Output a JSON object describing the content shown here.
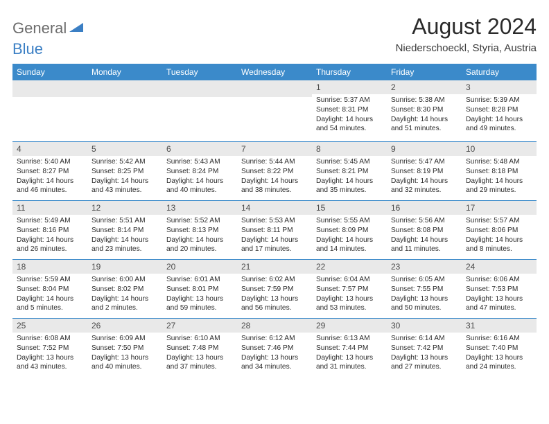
{
  "logo": {
    "text_general": "General",
    "text_blue": "Blue"
  },
  "title": "August 2024",
  "location": "Niederschoeckl, Styria, Austria",
  "colors": {
    "header_bg": "#3b8aca",
    "daynum_bg": "#e9e9e9",
    "row_border": "#3b8aca",
    "logo_gray": "#6c6c6c",
    "logo_blue": "#3b7fc4"
  },
  "weekdays": [
    "Sunday",
    "Monday",
    "Tuesday",
    "Wednesday",
    "Thursday",
    "Friday",
    "Saturday"
  ],
  "weeks": [
    [
      null,
      null,
      null,
      null,
      {
        "n": "1",
        "sr": "5:37 AM",
        "ss": "8:31 PM",
        "dl": "14 hours and 54 minutes."
      },
      {
        "n": "2",
        "sr": "5:38 AM",
        "ss": "8:30 PM",
        "dl": "14 hours and 51 minutes."
      },
      {
        "n": "3",
        "sr": "5:39 AM",
        "ss": "8:28 PM",
        "dl": "14 hours and 49 minutes."
      }
    ],
    [
      {
        "n": "4",
        "sr": "5:40 AM",
        "ss": "8:27 PM",
        "dl": "14 hours and 46 minutes."
      },
      {
        "n": "5",
        "sr": "5:42 AM",
        "ss": "8:25 PM",
        "dl": "14 hours and 43 minutes."
      },
      {
        "n": "6",
        "sr": "5:43 AM",
        "ss": "8:24 PM",
        "dl": "14 hours and 40 minutes."
      },
      {
        "n": "7",
        "sr": "5:44 AM",
        "ss": "8:22 PM",
        "dl": "14 hours and 38 minutes."
      },
      {
        "n": "8",
        "sr": "5:45 AM",
        "ss": "8:21 PM",
        "dl": "14 hours and 35 minutes."
      },
      {
        "n": "9",
        "sr": "5:47 AM",
        "ss": "8:19 PM",
        "dl": "14 hours and 32 minutes."
      },
      {
        "n": "10",
        "sr": "5:48 AM",
        "ss": "8:18 PM",
        "dl": "14 hours and 29 minutes."
      }
    ],
    [
      {
        "n": "11",
        "sr": "5:49 AM",
        "ss": "8:16 PM",
        "dl": "14 hours and 26 minutes."
      },
      {
        "n": "12",
        "sr": "5:51 AM",
        "ss": "8:14 PM",
        "dl": "14 hours and 23 minutes."
      },
      {
        "n": "13",
        "sr": "5:52 AM",
        "ss": "8:13 PM",
        "dl": "14 hours and 20 minutes."
      },
      {
        "n": "14",
        "sr": "5:53 AM",
        "ss": "8:11 PM",
        "dl": "14 hours and 17 minutes."
      },
      {
        "n": "15",
        "sr": "5:55 AM",
        "ss": "8:09 PM",
        "dl": "14 hours and 14 minutes."
      },
      {
        "n": "16",
        "sr": "5:56 AM",
        "ss": "8:08 PM",
        "dl": "14 hours and 11 minutes."
      },
      {
        "n": "17",
        "sr": "5:57 AM",
        "ss": "8:06 PM",
        "dl": "14 hours and 8 minutes."
      }
    ],
    [
      {
        "n": "18",
        "sr": "5:59 AM",
        "ss": "8:04 PM",
        "dl": "14 hours and 5 minutes."
      },
      {
        "n": "19",
        "sr": "6:00 AM",
        "ss": "8:02 PM",
        "dl": "14 hours and 2 minutes."
      },
      {
        "n": "20",
        "sr": "6:01 AM",
        "ss": "8:01 PM",
        "dl": "13 hours and 59 minutes."
      },
      {
        "n": "21",
        "sr": "6:02 AM",
        "ss": "7:59 PM",
        "dl": "13 hours and 56 minutes."
      },
      {
        "n": "22",
        "sr": "6:04 AM",
        "ss": "7:57 PM",
        "dl": "13 hours and 53 minutes."
      },
      {
        "n": "23",
        "sr": "6:05 AM",
        "ss": "7:55 PM",
        "dl": "13 hours and 50 minutes."
      },
      {
        "n": "24",
        "sr": "6:06 AM",
        "ss": "7:53 PM",
        "dl": "13 hours and 47 minutes."
      }
    ],
    [
      {
        "n": "25",
        "sr": "6:08 AM",
        "ss": "7:52 PM",
        "dl": "13 hours and 43 minutes."
      },
      {
        "n": "26",
        "sr": "6:09 AM",
        "ss": "7:50 PM",
        "dl": "13 hours and 40 minutes."
      },
      {
        "n": "27",
        "sr": "6:10 AM",
        "ss": "7:48 PM",
        "dl": "13 hours and 37 minutes."
      },
      {
        "n": "28",
        "sr": "6:12 AM",
        "ss": "7:46 PM",
        "dl": "13 hours and 34 minutes."
      },
      {
        "n": "29",
        "sr": "6:13 AM",
        "ss": "7:44 PM",
        "dl": "13 hours and 31 minutes."
      },
      {
        "n": "30",
        "sr": "6:14 AM",
        "ss": "7:42 PM",
        "dl": "13 hours and 27 minutes."
      },
      {
        "n": "31",
        "sr": "6:16 AM",
        "ss": "7:40 PM",
        "dl": "13 hours and 24 minutes."
      }
    ]
  ],
  "labels": {
    "sunrise": "Sunrise:",
    "sunset": "Sunset:",
    "daylight": "Daylight:"
  }
}
